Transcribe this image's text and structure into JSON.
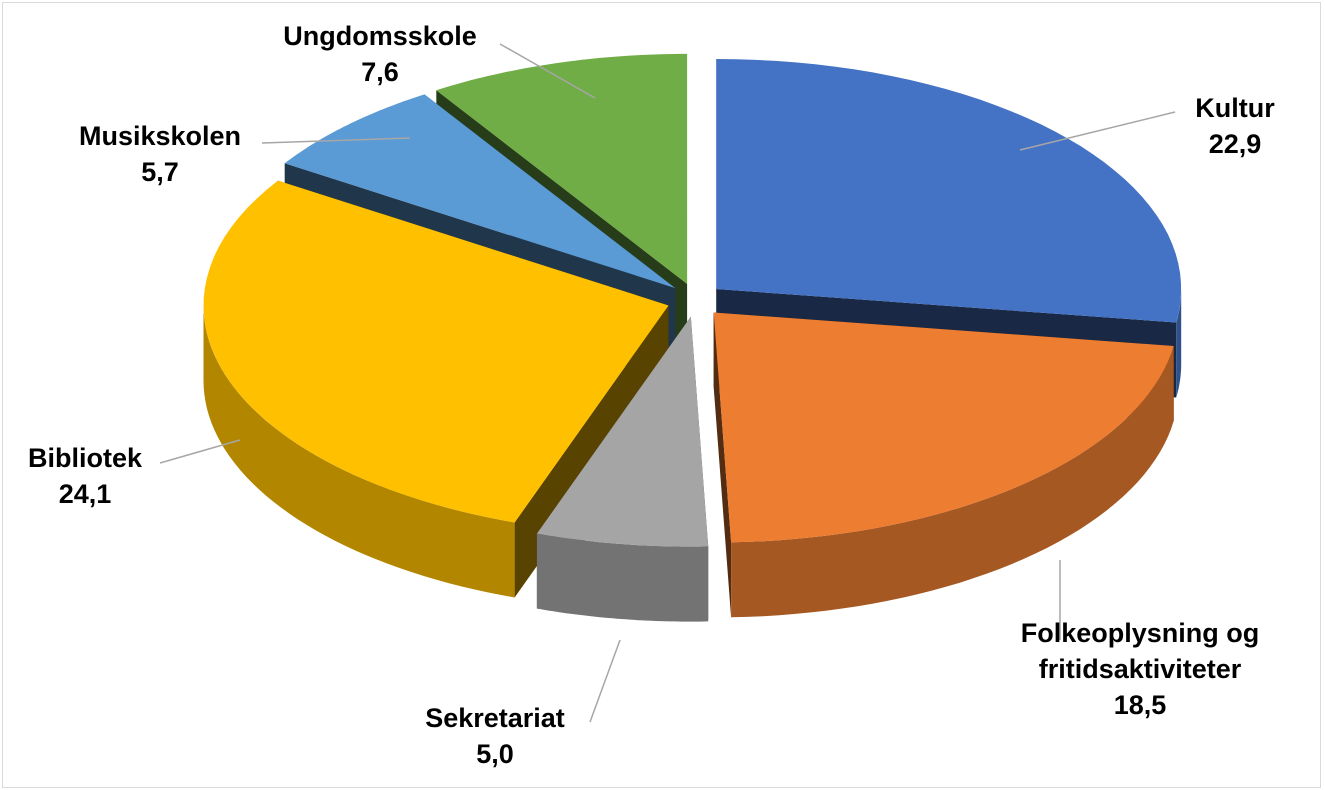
{
  "chart_data": {
    "type": "pie3d",
    "categories": [
      "Kultur",
      "Folkeoplysning og fritidsaktiviteter",
      "Sekretariat",
      "Bibliotek",
      "Musikskolen",
      "Ungdomsskole"
    ],
    "values": [
      22.9,
      18.5,
      5.0,
      24.1,
      5.7,
      7.6
    ],
    "value_labels": [
      "22,9",
      "18,5",
      "5,0",
      "24,1",
      "5,7",
      "7,6"
    ],
    "colors": [
      "#4472c4",
      "#ed7d31",
      "#a5a5a5",
      "#ffc000",
      "#5b9bd5",
      "#70ad47"
    ]
  }
}
